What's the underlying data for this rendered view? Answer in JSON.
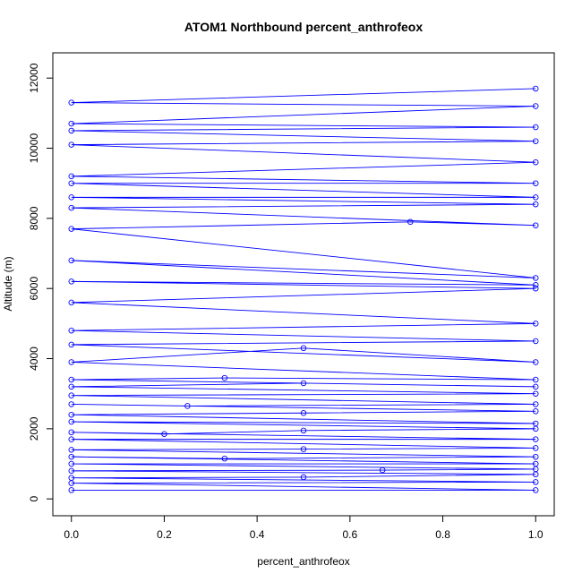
{
  "chart_data": {
    "type": "scatter",
    "title": "ATOM1 Northbound percent_anthrofeox",
    "xlabel": "percent_anthrofeox",
    "ylabel": "Altitude (m)",
    "xlim": [
      -0.04,
      1.04
    ],
    "ylim": [
      -480,
      12720
    ],
    "x_ticks": [
      "0.0",
      "0.2",
      "0.4",
      "0.6",
      "0.8",
      "1.0"
    ],
    "y_ticks": [
      "0",
      "2000",
      "4000",
      "6000",
      "8000",
      "10000",
      "12000"
    ],
    "grid": false,
    "legend": "none",
    "series_color": "#0000ff",
    "marker": "open-circle",
    "connected": true,
    "series": [
      {
        "points": [
          {
            "x": 0.0,
            "y": 250
          },
          {
            "x": 1.0,
            "y": 250
          },
          {
            "x": 0.0,
            "y": 450
          },
          {
            "x": 1.0,
            "y": 480
          },
          {
            "x": 0.0,
            "y": 600
          },
          {
            "x": 0.5,
            "y": 620
          },
          {
            "x": 1.0,
            "y": 700
          },
          {
            "x": 0.0,
            "y": 800
          },
          {
            "x": 0.67,
            "y": 820
          },
          {
            "x": 1.0,
            "y": 850
          },
          {
            "x": 0.0,
            "y": 1000
          },
          {
            "x": 1.0,
            "y": 1000
          },
          {
            "x": 0.0,
            "y": 1200
          },
          {
            "x": 0.33,
            "y": 1150
          },
          {
            "x": 1.0,
            "y": 1200
          },
          {
            "x": 0.0,
            "y": 1400
          },
          {
            "x": 0.5,
            "y": 1420
          },
          {
            "x": 1.0,
            "y": 1450
          },
          {
            "x": 0.0,
            "y": 1700
          },
          {
            "x": 1.0,
            "y": 1700
          },
          {
            "x": 0.0,
            "y": 1900
          },
          {
            "x": 0.2,
            "y": 1850
          },
          {
            "x": 0.5,
            "y": 1950
          },
          {
            "x": 1.0,
            "y": 2000
          },
          {
            "x": 0.0,
            "y": 2200
          },
          {
            "x": 1.0,
            "y": 2150
          },
          {
            "x": 0.0,
            "y": 2400
          },
          {
            "x": 0.5,
            "y": 2450
          },
          {
            "x": 1.0,
            "y": 2500
          },
          {
            "x": 0.0,
            "y": 2700
          },
          {
            "x": 0.25,
            "y": 2650
          },
          {
            "x": 1.0,
            "y": 2700
          },
          {
            "x": 0.0,
            "y": 2950
          },
          {
            "x": 1.0,
            "y": 3000
          },
          {
            "x": 0.0,
            "y": 3200
          },
          {
            "x": 0.5,
            "y": 3300
          },
          {
            "x": 1.0,
            "y": 3200
          },
          {
            "x": 0.0,
            "y": 3400
          },
          {
            "x": 0.33,
            "y": 3450
          },
          {
            "x": 1.0,
            "y": 3400
          },
          {
            "x": 0.0,
            "y": 3900
          },
          {
            "x": 0.5,
            "y": 4300
          },
          {
            "x": 1.0,
            "y": 3900
          },
          {
            "x": 0.0,
            "y": 4400
          },
          {
            "x": 1.0,
            "y": 4500
          },
          {
            "x": 0.0,
            "y": 4800
          },
          {
            "x": 1.0,
            "y": 5000
          },
          {
            "x": 0.0,
            "y": 5600
          },
          {
            "x": 1.0,
            "y": 6000
          },
          {
            "x": 0.0,
            "y": 6200
          },
          {
            "x": 1.0,
            "y": 6100
          },
          {
            "x": 0.0,
            "y": 6800
          },
          {
            "x": 1.0,
            "y": 6300
          },
          {
            "x": 0.0,
            "y": 7700
          },
          {
            "x": 0.73,
            "y": 7900
          },
          {
            "x": 1.0,
            "y": 7800
          },
          {
            "x": 0.0,
            "y": 8300
          },
          {
            "x": 1.0,
            "y": 8400
          },
          {
            "x": 0.0,
            "y": 8600
          },
          {
            "x": 1.0,
            "y": 8600
          },
          {
            "x": 0.0,
            "y": 9000
          },
          {
            "x": 1.0,
            "y": 9000
          },
          {
            "x": 0.0,
            "y": 9200
          },
          {
            "x": 1.0,
            "y": 9600
          },
          {
            "x": 0.0,
            "y": 10100
          },
          {
            "x": 1.0,
            "y": 10200
          },
          {
            "x": 0.0,
            "y": 10500
          },
          {
            "x": 1.0,
            "y": 10600
          },
          {
            "x": 0.0,
            "y": 10700
          },
          {
            "x": 1.0,
            "y": 11200
          },
          {
            "x": 0.0,
            "y": 11300
          },
          {
            "x": 1.0,
            "y": 11700
          }
        ]
      }
    ]
  }
}
